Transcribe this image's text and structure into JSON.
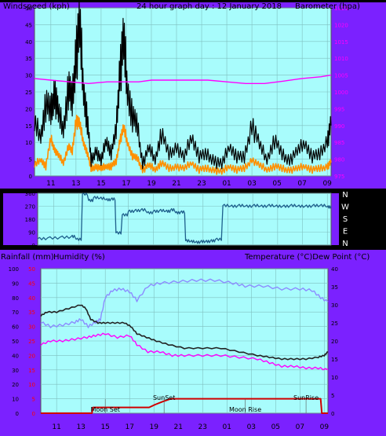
{
  "title": "24 hour graph day : 12 January 2018",
  "time_ticks": [
    "11",
    "13",
    "15",
    "17",
    "19",
    "21",
    "23",
    "01",
    "03",
    "05",
    "07",
    "09"
  ],
  "colors": {
    "wind_avg": "#ff9000",
    "wind_gust": "#000000",
    "barometer": "#ff00ff",
    "direction": "#1e5f8c",
    "rain": "#d00000",
    "humidity": "#8c8cff",
    "temperature": "#222222",
    "dewpoint": "#ff00ff",
    "frame": "#7b21ff",
    "plot_bg": "#a8fcfc"
  },
  "panels": {
    "wind": {
      "left_label": "Windspeed (kph)",
      "right_label": "Barometer (hpa)"
    },
    "direction": {
      "compass": [
        "N",
        "W",
        "S",
        "E",
        "N"
      ]
    },
    "temp": {
      "left_label_1": "Rainfall (mm)",
      "left_label_2": "Humidity (%)",
      "right_label": "Temperature (°C)Dew Point (°C)",
      "annotations": [
        {
          "text": "Moon Set",
          "t": "15:00"
        },
        {
          "text": "SunSet",
          "t": "19:50"
        },
        {
          "text": "Moon Rise",
          "t": "02:30"
        },
        {
          "text": "SunRise",
          "t": "07:30"
        }
      ]
    }
  },
  "chart_data": [
    {
      "type": "line",
      "title": "24 hour graph day : 12 January 2018",
      "xlabel": "",
      "x_ticks": [
        "11",
        "13",
        "15",
        "17",
        "19",
        "21",
        "23",
        "01",
        "03",
        "05",
        "07",
        "09"
      ],
      "y_left": {
        "label": "Windspeed (kph)",
        "lim": [
          0,
          50
        ],
        "ticks": [
          0,
          5,
          10,
          15,
          20,
          25,
          30,
          35,
          40,
          45,
          50
        ]
      },
      "y_right": {
        "label": "Barometer (hpa)",
        "lim": [
          975,
          1025
        ],
        "ticks": [
          975,
          980,
          985,
          990,
          995,
          1000,
          1005,
          1010,
          1015,
          1020,
          1025
        ]
      },
      "series": [
        {
          "name": "Wind gust",
          "axis": "left",
          "x": [
            9.7,
            10.2,
            10.6,
            11.0,
            11.3,
            11.6,
            12.0,
            12.4,
            12.7,
            13.0,
            13.3,
            13.6,
            13.9,
            14.2,
            14.6,
            15.0,
            15.4,
            15.8,
            16.2,
            16.5,
            16.8,
            17.1,
            17.5,
            17.9,
            18.3,
            18.8,
            19.3,
            19.8,
            20.4,
            21.0,
            21.6,
            22.2,
            22.8,
            23.4,
            24.0,
            24.6,
            25.2,
            25.8,
            26.4,
            27.0,
            27.6,
            28.2,
            28.8,
            29.4,
            30.0,
            30.6,
            31.2,
            31.8,
            32.4,
            33.0,
            33.3
          ],
          "y": [
            15,
            12,
            22,
            18,
            26,
            18,
            14,
            27,
            21,
            38,
            43,
            26,
            17,
            4,
            8,
            4,
            11,
            7,
            13,
            33,
            39,
            26,
            18,
            14,
            4,
            8,
            5,
            13,
            6,
            9,
            5,
            12,
            6,
            6,
            5,
            3,
            9,
            6,
            5,
            16,
            9,
            5,
            11,
            6,
            5,
            7,
            10,
            6,
            6,
            11,
            15
          ]
        },
        {
          "name": "Wind average",
          "axis": "left",
          "x": [
            9.7,
            10.2,
            10.6,
            11.0,
            11.3,
            11.6,
            12.0,
            12.4,
            12.7,
            13.0,
            13.3,
            13.6,
            13.9,
            14.2,
            14.6,
            15.0,
            15.4,
            15.8,
            16.2,
            16.5,
            16.8,
            17.1,
            17.5,
            17.9,
            18.3,
            18.8,
            19.3,
            19.8,
            20.4,
            21.0,
            21.6,
            22.2,
            22.8,
            23.4,
            24.0,
            24.6,
            25.2,
            25.8,
            26.4,
            27.0,
            27.6,
            28.2,
            28.8,
            29.4,
            30.0,
            30.6,
            31.2,
            31.8,
            32.4,
            33.0,
            33.3
          ],
          "y": [
            3,
            5,
            3,
            11,
            8,
            6,
            4,
            9,
            7,
            17,
            15,
            10,
            7,
            2,
            3,
            2,
            3,
            3,
            4,
            11,
            14,
            10,
            6,
            5,
            2,
            3,
            2,
            4,
            2,
            3,
            2,
            4,
            2,
            2,
            2,
            1,
            3,
            2,
            2,
            5,
            3,
            2,
            3,
            2,
            2,
            2,
            3,
            2,
            2,
            3,
            4
          ]
        },
        {
          "name": "Barometer",
          "axis": "right",
          "x": [
            9.7,
            11.0,
            12.5,
            14.0,
            15.5,
            17.0,
            18.0,
            19.0,
            20.5,
            22.0,
            23.5,
            25.0,
            26.5,
            28.0,
            29.5,
            31.0,
            32.5,
            33.3
          ],
          "y": [
            1004,
            1003.5,
            1003,
            1002.5,
            1003,
            1003,
            1003,
            1003.5,
            1003.5,
            1003.5,
            1003.5,
            1003,
            1002.5,
            1002.5,
            1003.2,
            1004,
            1004.5,
            1005
          ]
        }
      ]
    },
    {
      "type": "line",
      "title": "",
      "y_ticks": [
        0,
        90,
        180,
        270,
        360
      ],
      "compass_labels": [
        "N",
        "W",
        "S",
        "E",
        "N"
      ],
      "ylim": [
        0,
        360
      ],
      "series": [
        {
          "name": "Wind direction",
          "x": [
            9.7,
            10.5,
            11.5,
            12.4,
            12.8,
            13.3,
            13.8,
            14.2,
            14.7,
            15.2,
            15.6,
            16.0,
            16.5,
            17.0,
            17.5,
            18.0,
            18.5,
            19.0,
            19.5,
            20.0,
            20.4,
            20.8,
            21.2,
            21.6,
            22.0,
            22.4,
            22.8,
            23.2,
            23.6,
            24.0,
            24.6,
            25.2,
            25.8,
            26.4,
            27.0,
            27.6,
            28.2,
            28.8,
            29.4,
            30.0,
            30.6,
            31.2,
            31.8,
            32.4,
            33.0,
            33.3
          ],
          "y": [
            45,
            50,
            55,
            60,
            40,
            355,
            310,
            330,
            325,
            315,
            320,
            85,
            210,
            235,
            240,
            245,
            225,
            235,
            240,
            235,
            245,
            225,
            230,
            30,
            25,
            20,
            25,
            25,
            30,
            40,
            275,
            270,
            275,
            270,
            275,
            270,
            275,
            270,
            270,
            275,
            270,
            270,
            275,
            275,
            265,
            270
          ]
        }
      ]
    },
    {
      "type": "line",
      "title": "",
      "x_ticks": [
        "11",
        "13",
        "15",
        "17",
        "19",
        "21",
        "23",
        "01",
        "03",
        "05",
        "07",
        "09"
      ],
      "y_left": {
        "label": "Humidity (%)",
        "lim": [
          0,
          100
        ],
        "ticks": [
          0,
          10,
          20,
          30,
          40,
          50,
          60,
          70,
          80,
          90,
          100
        ]
      },
      "y_left_rain": {
        "label": "Rainfall (mm)",
        "lim": [
          0,
          50
        ],
        "ticks": [
          0,
          5,
          10,
          15,
          20,
          25,
          30,
          35,
          40,
          45,
          50
        ]
      },
      "y_right": {
        "label": "Temperature (°C)Dew Point (°C)",
        "lim": [
          0,
          40
        ],
        "ticks": [
          0,
          5,
          10,
          15,
          20,
          25,
          30,
          35,
          40
        ]
      },
      "series": [
        {
          "name": "Humidity",
          "axis": "left",
          "x": [
            9.7,
            10.5,
            11.5,
            12.5,
            13.0,
            13.6,
            14.2,
            14.6,
            15.0,
            15.6,
            16.3,
            17.0,
            17.6,
            18.5,
            19.5,
            21.0,
            22.5,
            24.0,
            25.5,
            26.5,
            28.0,
            29.5,
            31.0,
            32.0,
            32.7,
            33.3
          ],
          "y": [
            63,
            60,
            61,
            63,
            65,
            60,
            63,
            65,
            80,
            85,
            86,
            84,
            78,
            88,
            90,
            91,
            92,
            92,
            90,
            88,
            88,
            86,
            86,
            85,
            80,
            77
          ]
        },
        {
          "name": "Temperature",
          "axis": "right",
          "x": [
            9.7,
            10.2,
            11.0,
            12.0,
            13.0,
            13.4,
            13.8,
            14.4,
            15.0,
            15.8,
            16.6,
            17.1,
            17.6,
            18.4,
            19.2,
            20.2,
            21.5,
            23.0,
            24.5,
            26.0,
            27.5,
            28.5,
            29.5,
            30.5,
            31.5,
            32.5,
            33.0,
            33.3
          ],
          "y": [
            27,
            28,
            28,
            29,
            30,
            29,
            26,
            25,
            25,
            25,
            25,
            24,
            22,
            21,
            20,
            19,
            18,
            18,
            18,
            17,
            16,
            15.5,
            15,
            15,
            15,
            15.5,
            16,
            17
          ]
        },
        {
          "name": "Dew point",
          "axis": "right",
          "x": [
            9.7,
            10.5,
            11.5,
            12.5,
            13.5,
            14.2,
            15.0,
            16.0,
            17.0,
            17.6,
            18.5,
            19.5,
            20.5,
            21.5,
            23.0,
            24.5,
            26.0,
            27.5,
            28.5,
            29.5,
            30.5,
            31.5,
            32.5,
            33.3
          ],
          "y": [
            19,
            20,
            20,
            20.5,
            21,
            21.5,
            22,
            21,
            21.5,
            19,
            17,
            17,
            16,
            16,
            16,
            16,
            15.5,
            15,
            14,
            13,
            13,
            12.5,
            12.5,
            12
          ]
        },
        {
          "name": "Rainfall",
          "axis": "left_rain",
          "x": [
            9.7,
            13.9,
            14.0,
            17.2,
            18.6,
            19.1,
            19.7,
            20.4,
            21.2,
            22.1,
            22.9,
            23.7,
            32.7,
            32.8,
            33.3
          ],
          "y": [
            0,
            0,
            2,
            2,
            2,
            3,
            4,
            5,
            5,
            5,
            5,
            5,
            5,
            0,
            0
          ]
        }
      ]
    }
  ]
}
